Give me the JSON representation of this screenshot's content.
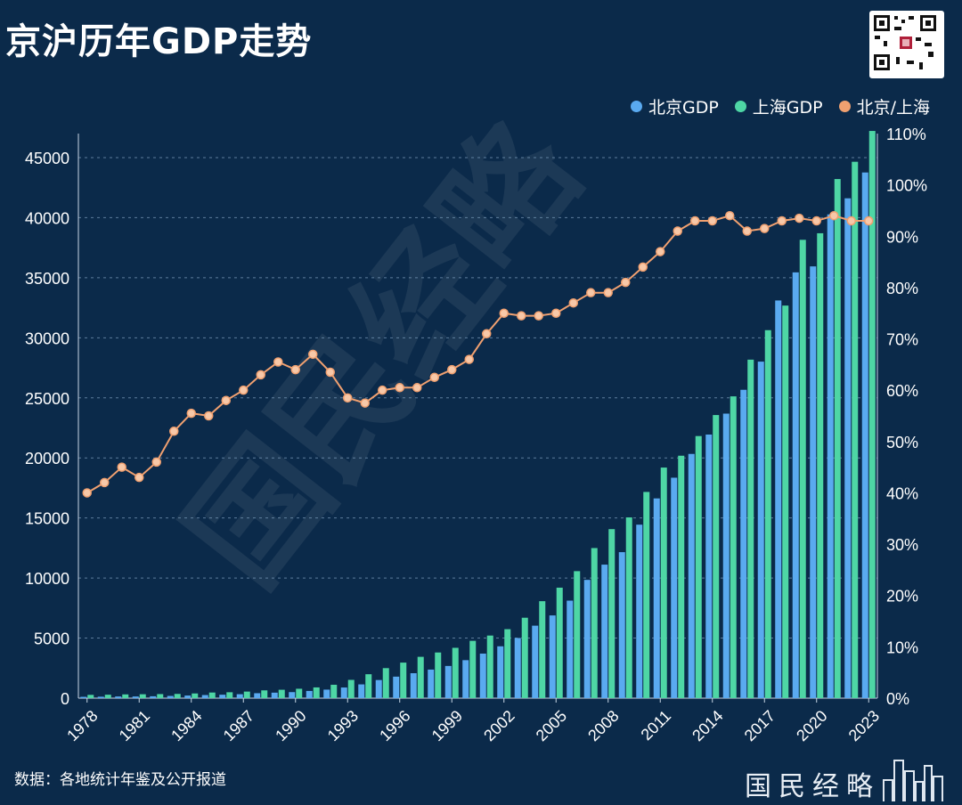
{
  "title": "京沪历年GDP走势",
  "source": "数据：各地统计年鉴及公开报道",
  "brand": "国民经略",
  "watermark": "国民经略",
  "colors": {
    "background": "#0b2a4a",
    "beijing": "#5aaaf0",
    "shanghai": "#4ed6a5",
    "ratio": "#f0a070",
    "grid": "#7fa0c0"
  },
  "legend": [
    {
      "label": "北京GDP",
      "color": "#5aaaf0"
    },
    {
      "label": "上海GDP",
      "color": "#4ed6a5"
    },
    {
      "label": "北京/上海",
      "color": "#f0a070"
    }
  ],
  "chart_data": {
    "type": "bar",
    "title": "京沪历年GDP走势",
    "x_tick_labels": [
      "1978",
      "1981",
      "1984",
      "1987",
      "1990",
      "1993",
      "1996",
      "1999",
      "2002",
      "2005",
      "2008",
      "2011",
      "2014",
      "2017",
      "2020",
      "2023"
    ],
    "y_left_ticks": [
      0,
      5000,
      10000,
      15000,
      20000,
      25000,
      30000,
      35000,
      40000,
      45000
    ],
    "y_right_ticks": [
      "0%",
      "10%",
      "20%",
      "30%",
      "40%",
      "50%",
      "60%",
      "70%",
      "80%",
      "90%",
      "100%",
      "110%"
    ],
    "ylim_left": [
      0,
      47000
    ],
    "ylim_right": [
      0,
      1.1
    ],
    "grid": true,
    "legend_position": "top-right",
    "categories": [
      1978,
      1979,
      1980,
      1981,
      1982,
      1983,
      1984,
      1985,
      1986,
      1987,
      1988,
      1989,
      1990,
      1991,
      1992,
      1993,
      1994,
      1995,
      1996,
      1997,
      1998,
      1999,
      2000,
      2001,
      2002,
      2003,
      2004,
      2005,
      2006,
      2007,
      2008,
      2009,
      2010,
      2011,
      2012,
      2013,
      2014,
      2015,
      2016,
      2017,
      2018,
      2019,
      2020,
      2021,
      2022,
      2023
    ],
    "series": [
      {
        "name": "北京GDP",
        "kind": "bar",
        "axis": "left",
        "values": [
          109,
          120,
          139,
          139,
          155,
          183,
          217,
          257,
          285,
          327,
          410,
          456,
          501,
          599,
          709,
          886,
          1145,
          1508,
          1790,
          2076,
          2377,
          2679,
          3162,
          3708,
          4315,
          5007,
          6033,
          6886,
          8118,
          9847,
          11115,
          12153,
          14441,
          16628,
          18350,
          20330,
          21944,
          23686,
          25669,
          28015,
          33106,
          35445,
          35943,
          40270,
          41611,
          43761
        ]
      },
      {
        "name": "上海GDP",
        "kind": "bar",
        "axis": "left",
        "values": [
          273,
          286,
          312,
          325,
          337,
          352,
          391,
          467,
          490,
          546,
          648,
          697,
          782,
          894,
          1114,
          1520,
          1991,
          2499,
          2958,
          3439,
          3801,
          4189,
          4771,
          5210,
          5741,
          6694,
          8072,
          9197,
          10572,
          12494,
          14070,
          15046,
          17166,
          19196,
          20182,
          21818,
          23568,
          25123,
          28179,
          30633,
          32680,
          38155,
          38701,
          43215,
          44653,
          47219
        ]
      },
      {
        "name": "北京/上海",
        "kind": "line",
        "axis": "right",
        "values": [
          0.4,
          0.42,
          0.45,
          0.43,
          0.46,
          0.52,
          0.555,
          0.55,
          0.58,
          0.6,
          0.63,
          0.655,
          0.64,
          0.67,
          0.635,
          0.585,
          0.575,
          0.6,
          0.605,
          0.605,
          0.625,
          0.64,
          0.66,
          0.71,
          0.75,
          0.745,
          0.745,
          0.75,
          0.77,
          0.79,
          0.79,
          0.81,
          0.84,
          0.87,
          0.91,
          0.93,
          0.93,
          0.94,
          0.91,
          0.915,
          0.93,
          0.935,
          0.93,
          0.94,
          0.93,
          0.93
        ]
      }
    ]
  }
}
